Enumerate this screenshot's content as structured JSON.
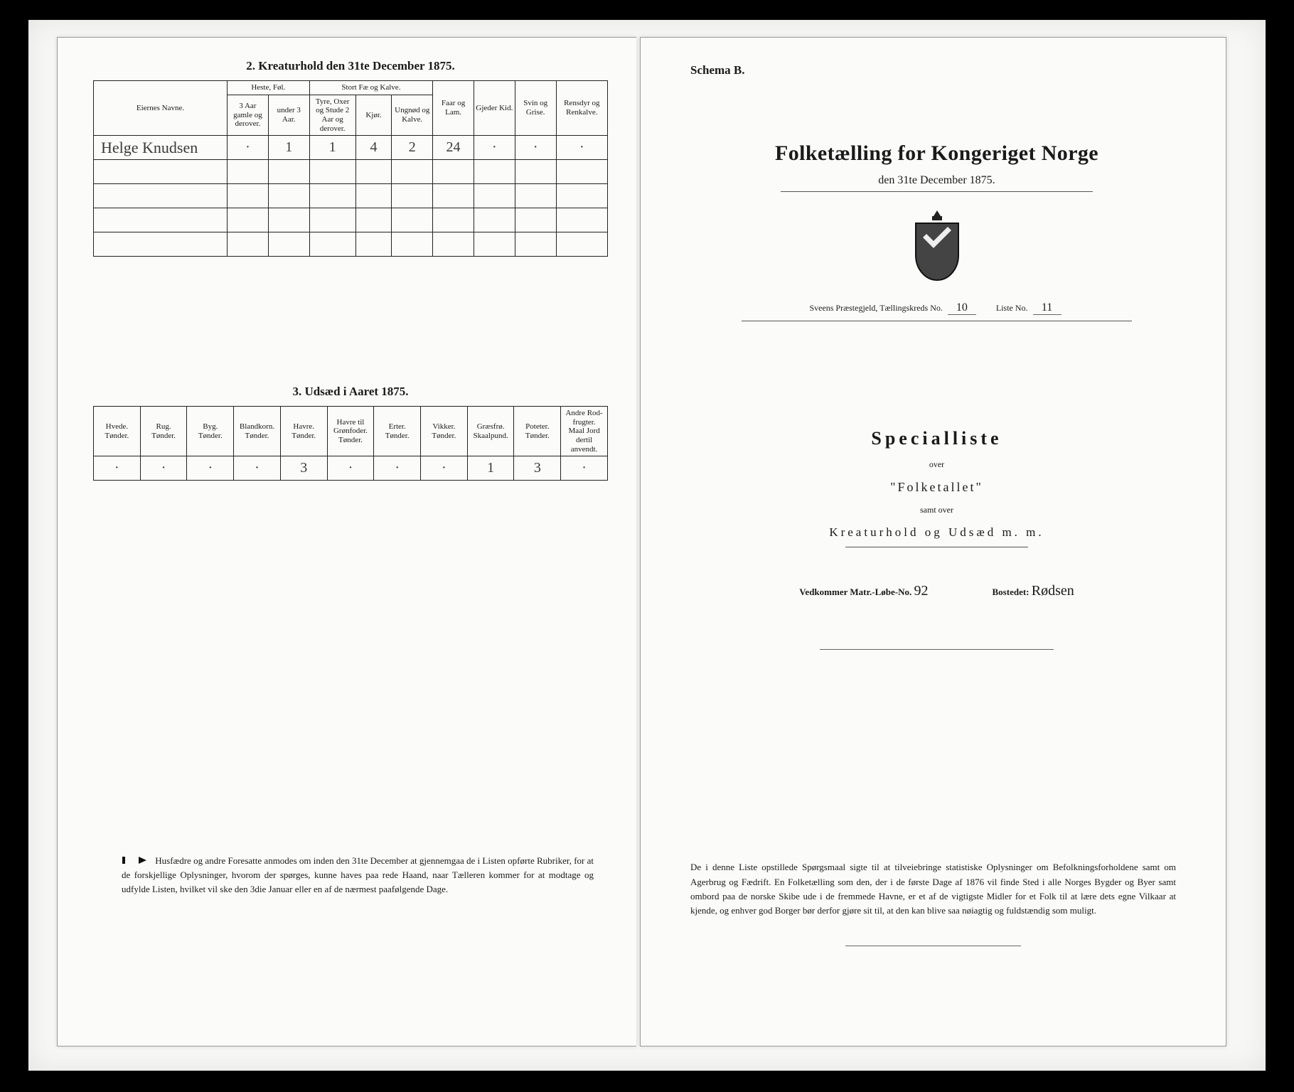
{
  "left_page": {
    "section2": {
      "title": "2.  Kreaturhold den 31te December 1875.",
      "group_headers": {
        "col1": "Eiernes Navne.",
        "heste": "Heste, Føl.",
        "stort": "Stort Fæ og Kalve.",
        "faar": "Faar og\nLam.",
        "gjeder": "Gjeder\nKid.",
        "svin": "Svin og\nGrise.",
        "rensdyr": "Rensdyr\nog\nRenkalve."
      },
      "sub_headers": {
        "heste1": "3 Aar gamle\nog derover.",
        "heste2": "under 3 Aar.",
        "stort1": "Tyre, Oxer og\nStude 2 Aar\nog derover.",
        "stort2": "Kjør.",
        "stort3": "Ungnød og\nKalve."
      },
      "rows": [
        {
          "name": "Helge Knudsen",
          "cells": [
            "·",
            "1",
            "1",
            "4",
            "2",
            "24",
            "·",
            "·",
            "·",
            "·"
          ]
        },
        {
          "name": "",
          "cells": [
            "",
            "",
            "",
            "",
            "",
            "",
            "",
            "",
            "",
            ""
          ]
        },
        {
          "name": "",
          "cells": [
            "",
            "",
            "",
            "",
            "",
            "",
            "",
            "",
            "",
            ""
          ]
        },
        {
          "name": "",
          "cells": [
            "",
            "",
            "",
            "",
            "",
            "",
            "",
            "",
            "",
            ""
          ]
        },
        {
          "name": "",
          "cells": [
            "",
            "",
            "",
            "",
            "",
            "",
            "",
            "",
            "",
            ""
          ]
        }
      ]
    },
    "section3": {
      "title": "3.  Udsæd i Aaret 1875.",
      "headers": [
        "Hvede.\nTønder.",
        "Rug.\nTønder.",
        "Byg.\nTønder.",
        "Blandkorn.\nTønder.",
        "Havre.\nTønder.",
        "Havre til\nGrønfoder.\nTønder.",
        "Erter.\nTønder.",
        "Vikker.\nTønder.",
        "Græsfrø.\nSkaalpund.",
        "Poteter.\nTønder.",
        "Andre Rod-\nfrugter.\nMaal Jord\ndertil anvendt."
      ],
      "row": [
        "·",
        "·",
        "·",
        "·",
        "3",
        "·",
        "·",
        "·",
        "1",
        "3",
        "·"
      ]
    },
    "note": "Husfædre og andre Foresatte anmodes om inden den 31te December at gjennemgaa de i Listen opførte Rubriker, for at de forskjellige Oplysninger, hvorom der spørges, kunne haves paa rede Haand, naar Tælleren kommer for at modtage og udfylde Listen, hvilket vil ske den 3die Januar eller en af de nærmest paafølgende Dage."
  },
  "right_page": {
    "schema_label": "Schema B.",
    "title": "Folketælling for Kongeriget Norge",
    "subtitle": "den 31te December 1875.",
    "parish_line": {
      "prefix": "Sveens Præstegjeld, Tællingskreds No.",
      "kreds_no": "10",
      "liste_label": "Liste No.",
      "liste_no": "11"
    },
    "special": "Specialliste",
    "over": "over",
    "folketallet": "\"Folketallet\"",
    "samt": "samt over",
    "kreatur": "Kreaturhold og Udsæd m. m.",
    "vedkom": {
      "left_label": "Vedkommer Matr.-Løbe-No.",
      "left_val": "92",
      "right_label": "Bostedet:",
      "right_val": "Rødsen"
    },
    "bottom_note": "De i denne Liste opstillede Spørgsmaal sigte til at tilveiebringe statistiske Oplysninger om Befolkningsforholdene samt om Agerbrug og Fædrift. En Folketælling som den, der i de første Dage af 1876 vil finde Sted i alle Norges Bygder og Byer samt ombord paa de norske Skibe ude i de fremmede Havne, er et af de vigtigste Midler for et Folk til at lære dets egne Vilkaar at kjende, og enhver god Borger bør derfor gjøre sit til, at den kan blive saa nøiagtig og fuldstændig som muligt."
  },
  "styling": {
    "page_bg": "#fbfbfa",
    "scan_bg": "#f7f7f5",
    "border_color": "#222222",
    "text_color": "#1a1a1a",
    "handwritten_color": "#3a3a3a",
    "big_title_fontsize": 30,
    "special_fontsize": 26,
    "body_fontsize": 13,
    "header_fontsize": 11
  }
}
